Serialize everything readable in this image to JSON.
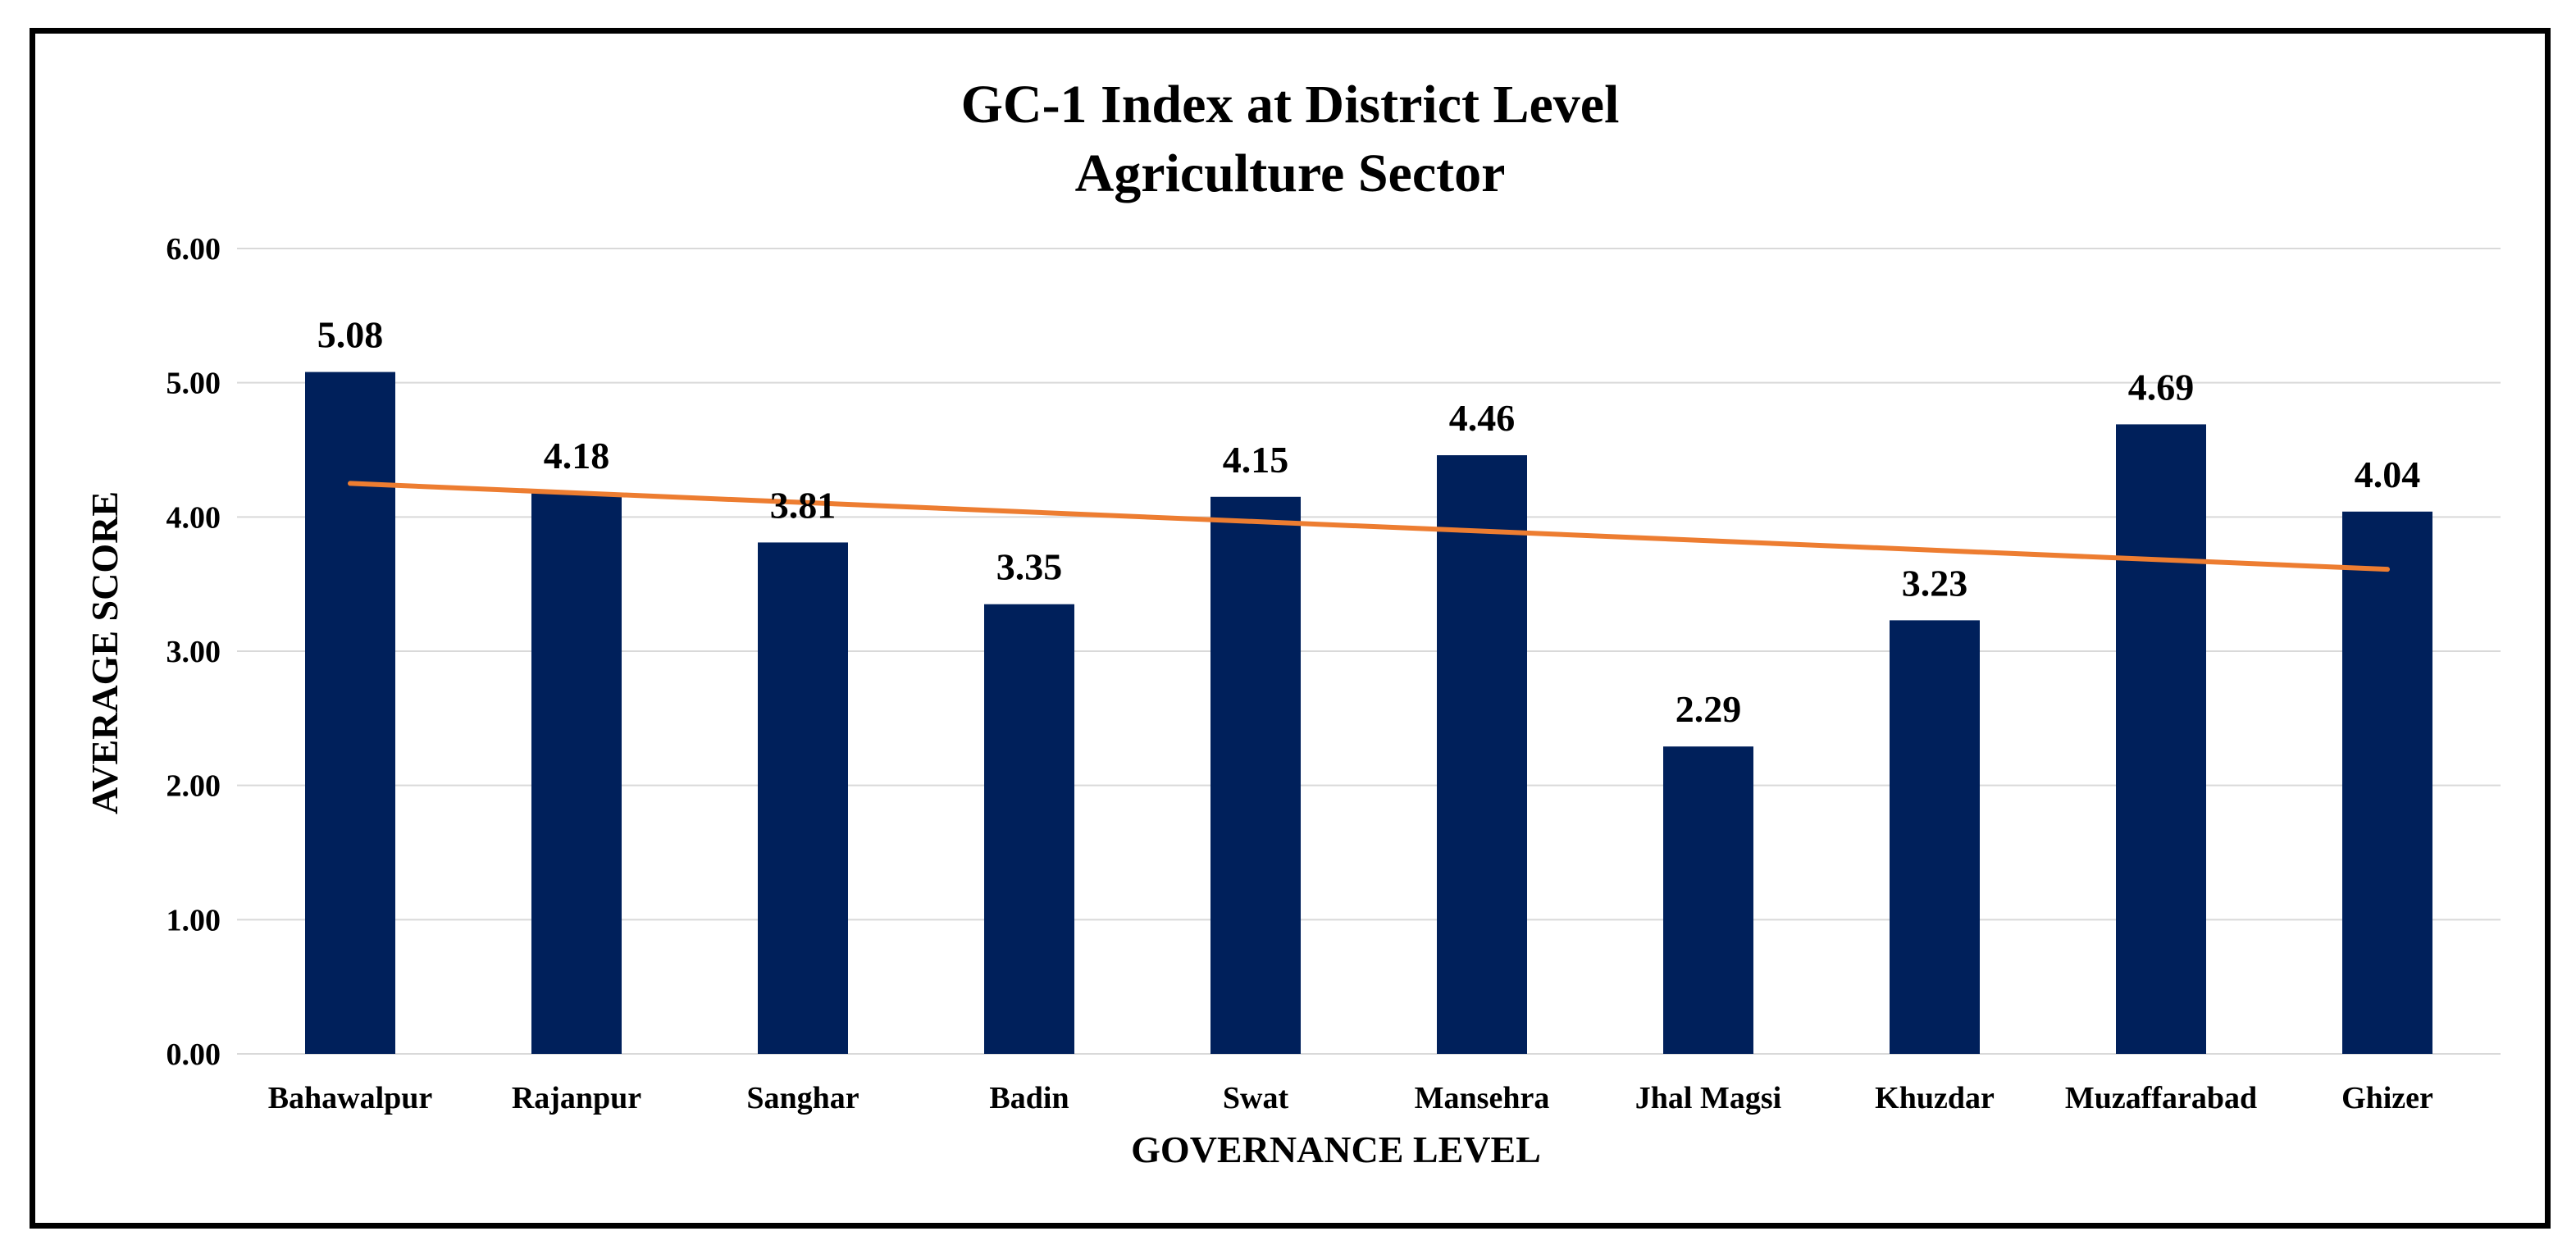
{
  "chart_data": {
    "type": "bar",
    "title": "GC-1 Index at District Level",
    "subtitle": "Agriculture Sector",
    "xlabel": "GOVERNANCE LEVEL",
    "ylabel": "AVERAGE SCORE",
    "ylim": [
      0,
      6
    ],
    "yticks": [
      "0.00",
      "1.00",
      "2.00",
      "3.00",
      "4.00",
      "5.00",
      "6.00"
    ],
    "grid": true,
    "categories": [
      "Bahawalpur",
      "Rajanpur",
      "Sanghar",
      "Badin",
      "Swat",
      "Mansehra",
      "Jhal Magsi",
      "Khuzdar",
      "Muzaffarabad",
      "Ghizer"
    ],
    "values": [
      5.08,
      4.18,
      3.81,
      3.35,
      4.15,
      4.46,
      2.29,
      3.23,
      4.69,
      4.04
    ],
    "value_labels": [
      "5.08",
      "4.18",
      "3.81",
      "3.35",
      "4.15",
      "4.46",
      "2.29",
      "3.23",
      "4.69",
      "4.04"
    ],
    "trendline": {
      "type": "linear",
      "start": 4.25,
      "end": 3.61
    },
    "colors": {
      "bar": "#00205B",
      "trendline": "#ED7D31",
      "grid": "#D9D9D9"
    }
  }
}
